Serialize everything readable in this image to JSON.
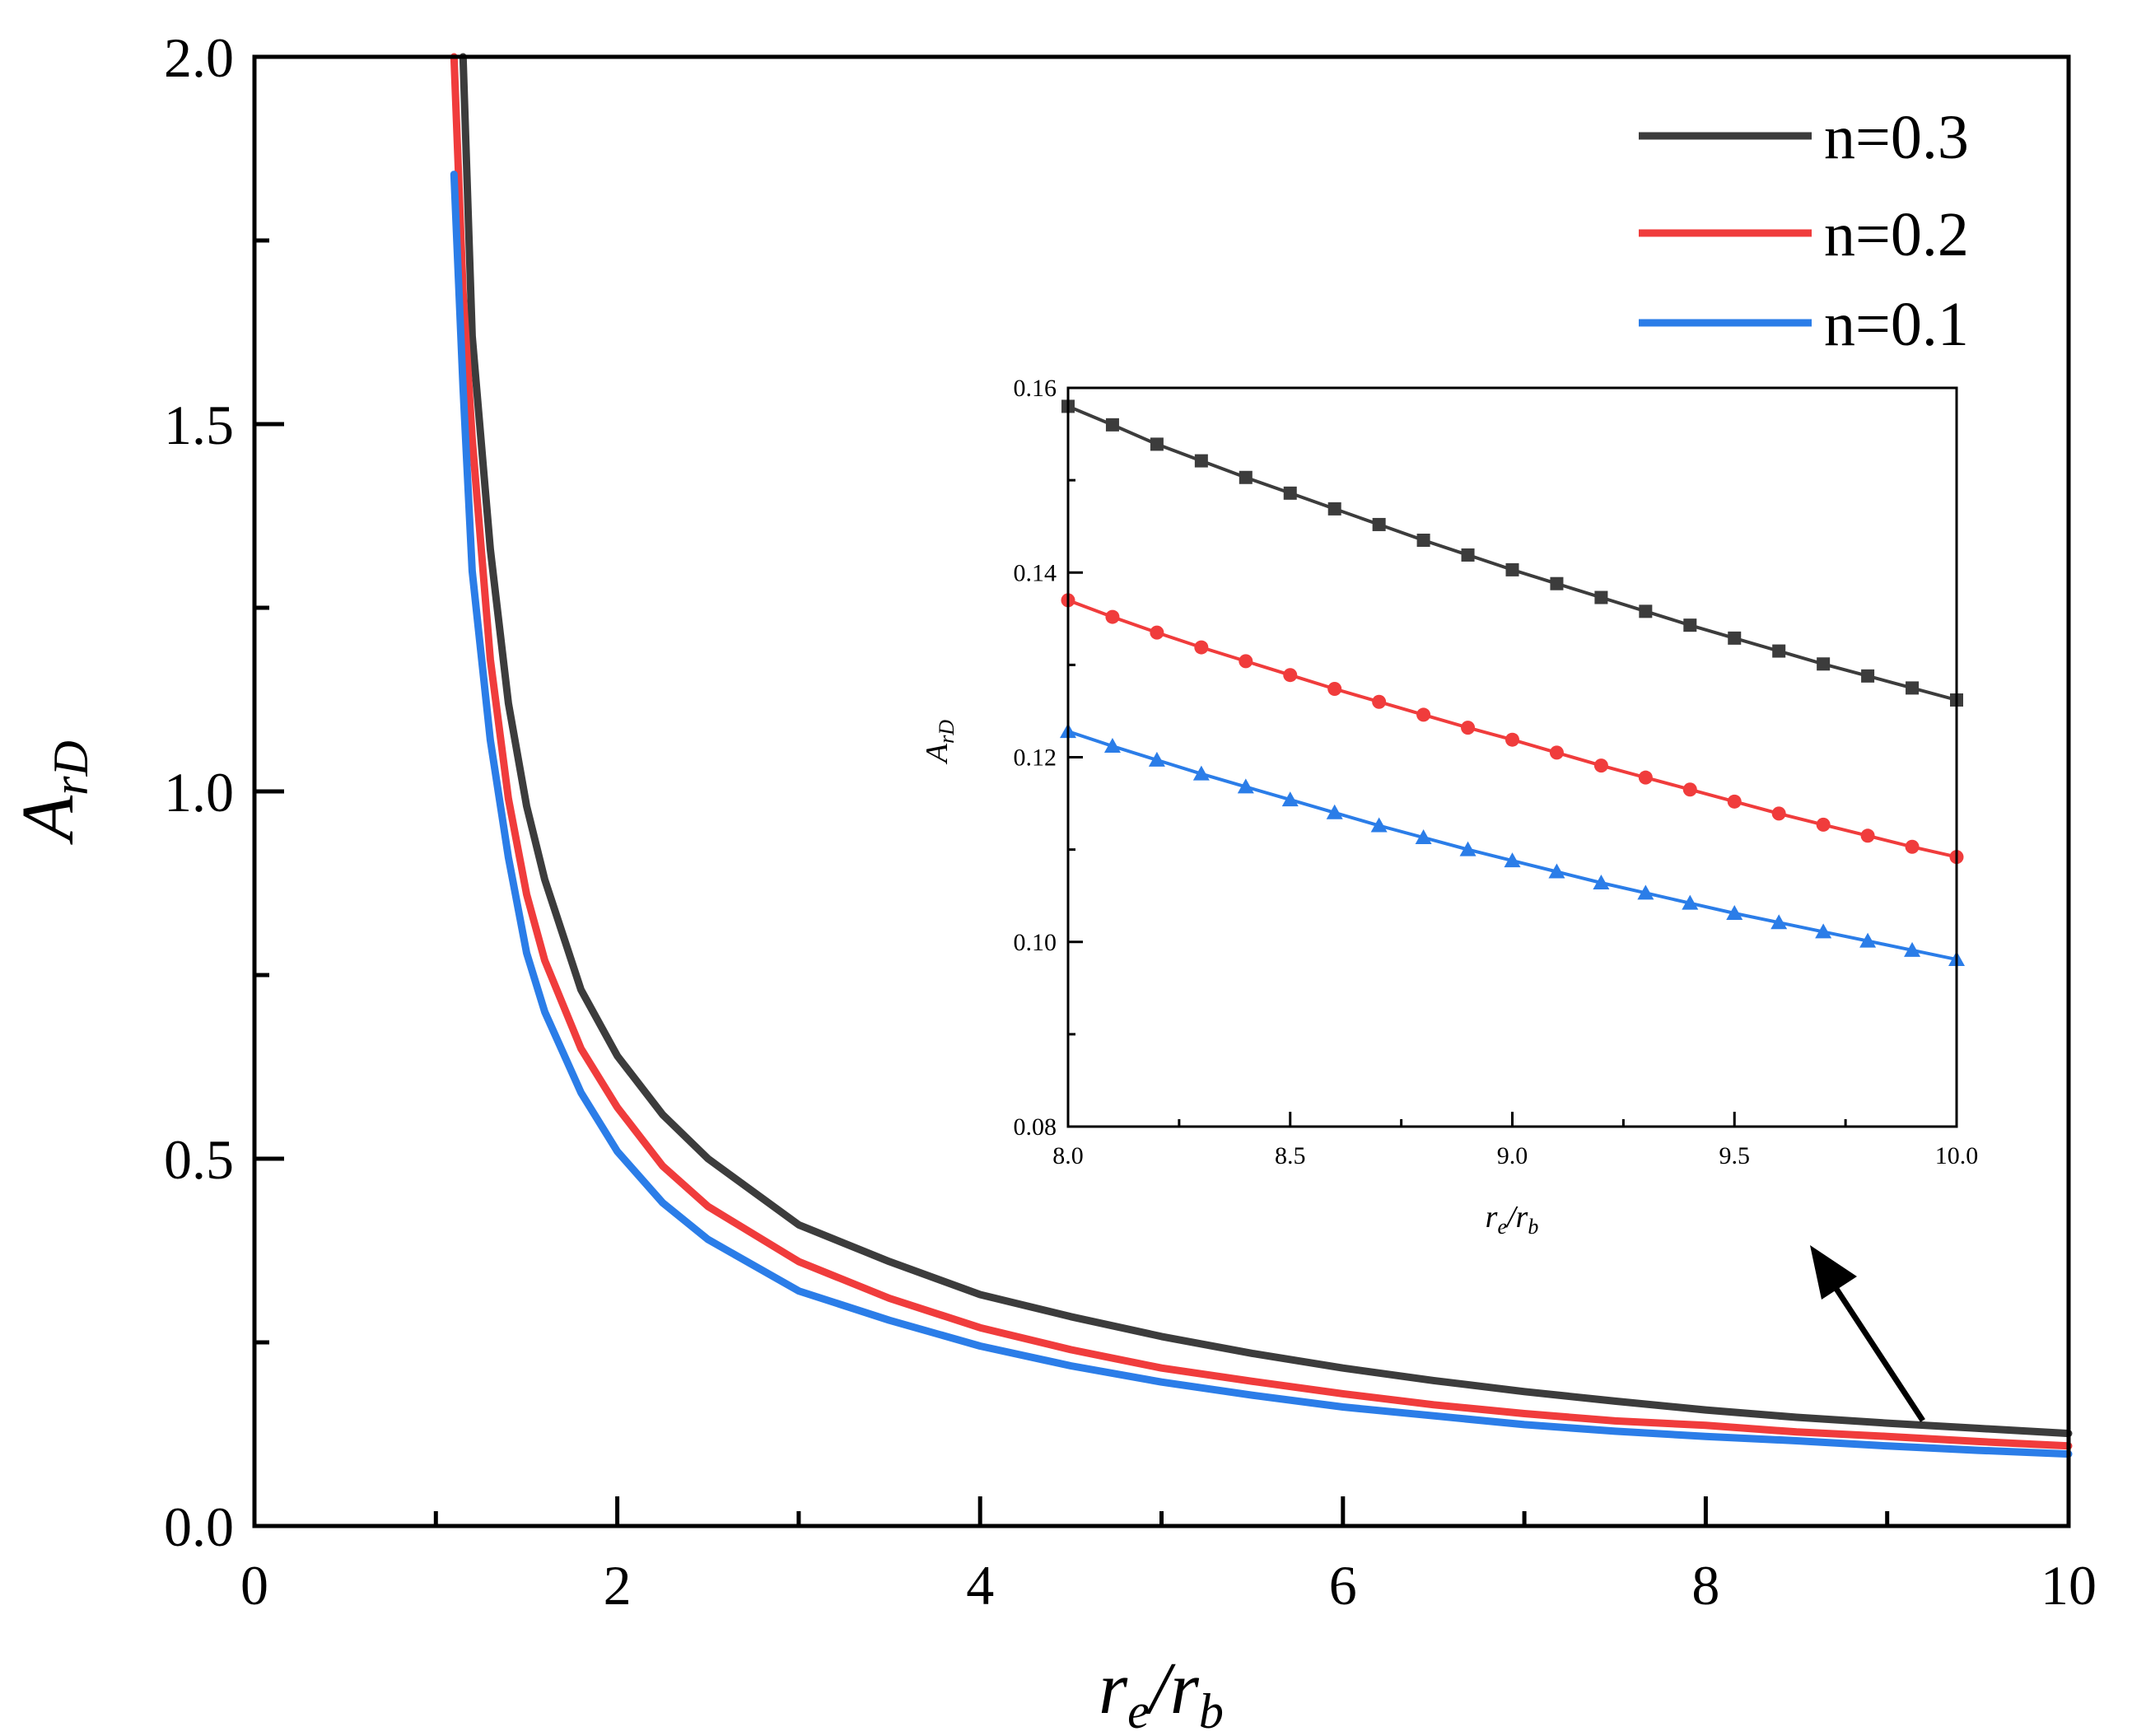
{
  "chart_data": [
    {
      "type": "line",
      "role": "main",
      "title": "",
      "xlabel": {
        "base": "r",
        "sub1": "e",
        "sep": "/",
        "base2": "r",
        "sub2": "b"
      },
      "ylabel": {
        "base": "A",
        "sub": "rD"
      },
      "xlim": [
        0,
        10
      ],
      "ylim": [
        0,
        2.0
      ],
      "xticks": [
        0,
        2,
        4,
        6,
        8,
        10
      ],
      "xtick_labels": [
        "0",
        "2",
        "4",
        "6",
        "8",
        "10"
      ],
      "yticks": [
        0.0,
        0.5,
        1.0,
        1.5,
        2.0
      ],
      "ytick_labels": [
        "0.0",
        "0.5",
        "1.0",
        "1.5",
        "2.0"
      ],
      "x": [
        1.1,
        1.15,
        1.2,
        1.3,
        1.4,
        1.5,
        1.6,
        1.8,
        2.0,
        2.25,
        2.5,
        3.0,
        3.5,
        4.0,
        4.5,
        5.0,
        5.5,
        6.0,
        6.5,
        7.0,
        7.5,
        8.0,
        8.5,
        9.0,
        9.5,
        10.0
      ],
      "series": [
        {
          "name": "n=0.3",
          "color": "#3c3c3c",
          "values": [
            null,
            2.0,
            1.62,
            1.33,
            1.12,
            0.98,
            0.88,
            0.73,
            0.64,
            0.56,
            0.5,
            0.41,
            0.36,
            0.315,
            0.285,
            0.258,
            0.235,
            0.215,
            0.198,
            0.183,
            0.17,
            0.158,
            0.148,
            0.14,
            0.133,
            0.126
          ]
        },
        {
          "name": "n=0.2",
          "color": "#f03c3c",
          "values": [
            2.0,
            1.68,
            1.48,
            1.18,
            0.99,
            0.86,
            0.77,
            0.65,
            0.57,
            0.49,
            0.435,
            0.36,
            0.31,
            0.27,
            0.24,
            0.215,
            0.197,
            0.18,
            0.165,
            0.153,
            0.143,
            0.137,
            0.128,
            0.122,
            0.115,
            0.109
          ]
        },
        {
          "name": "n=0.1",
          "color": "#2b7de8",
          "values": [
            1.84,
            1.55,
            1.3,
            1.07,
            0.91,
            0.78,
            0.7,
            0.59,
            0.51,
            0.44,
            0.39,
            0.32,
            0.28,
            0.245,
            0.218,
            0.196,
            0.178,
            0.162,
            0.15,
            0.138,
            0.129,
            0.122,
            0.116,
            0.109,
            0.103,
            0.098
          ]
        }
      ],
      "legend": {
        "position": "top-right",
        "entries": [
          "n=0.3",
          "n=0.2",
          "n=0.1"
        ]
      }
    },
    {
      "type": "line",
      "role": "inset",
      "xlabel": {
        "base": "r",
        "sub1": "e",
        "sep": "/",
        "base2": "r",
        "sub2": "b"
      },
      "ylabel": {
        "base": "A",
        "sub": "rD"
      },
      "xlim": [
        8.0,
        10.0
      ],
      "ylim": [
        0.08,
        0.16
      ],
      "xticks": [
        8.0,
        8.5,
        9.0,
        9.5,
        10.0
      ],
      "xtick_labels": [
        "8.0",
        "8.5",
        "9.0",
        "9.5",
        "10.0"
      ],
      "yticks": [
        0.08,
        0.1,
        0.12,
        0.14,
        0.16
      ],
      "ytick_labels": [
        "0.08",
        "0.10",
        "0.12",
        "0.14",
        "0.16"
      ],
      "x": [
        8.0,
        8.1,
        8.2,
        8.3,
        8.4,
        8.5,
        8.6,
        8.7,
        8.8,
        8.9,
        9.0,
        9.1,
        9.2,
        9.3,
        9.4,
        9.5,
        9.6,
        9.7,
        9.8,
        9.9,
        10.0
      ],
      "series": [
        {
          "name": "n=0.3",
          "color": "#3c3c3c",
          "marker": "square",
          "values": [
            0.158,
            0.156,
            0.1539,
            0.1521,
            0.1503,
            0.1486,
            0.1469,
            0.1452,
            0.1435,
            0.1419,
            0.1403,
            0.1388,
            0.1373,
            0.1358,
            0.1343,
            0.1329,
            0.1315,
            0.1301,
            0.1288,
            0.1275,
            0.1262
          ]
        },
        {
          "name": "n=0.2",
          "color": "#f03c3c",
          "marker": "circle",
          "values": [
            0.137,
            0.1352,
            0.1335,
            0.1319,
            0.1304,
            0.1289,
            0.1274,
            0.126,
            0.1246,
            0.1232,
            0.1219,
            0.1205,
            0.1191,
            0.1178,
            0.1165,
            0.1152,
            0.1139,
            0.1127,
            0.1115,
            0.1103,
            0.1092
          ]
        },
        {
          "name": "n=0.1",
          "color": "#2b7de8",
          "marker": "triangle",
          "values": [
            0.1228,
            0.1212,
            0.1197,
            0.1182,
            0.1168,
            0.1154,
            0.114,
            0.1126,
            0.1113,
            0.11,
            0.1088,
            0.1076,
            0.1064,
            0.1053,
            0.1042,
            0.1031,
            0.1021,
            0.1011,
            0.1001,
            0.0991,
            0.0981
          ]
        }
      ]
    }
  ]
}
